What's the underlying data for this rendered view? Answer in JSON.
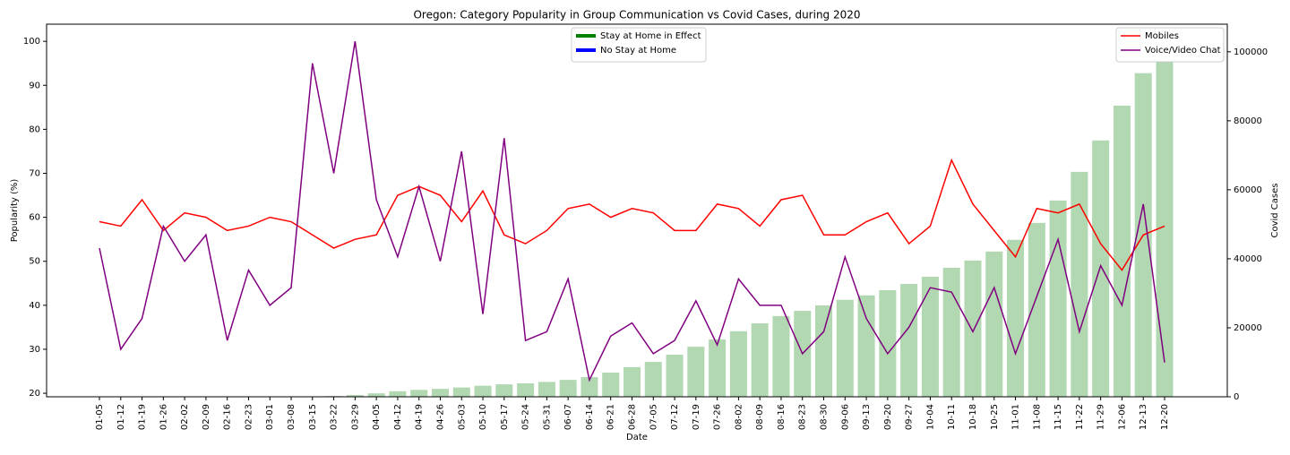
{
  "chart_data": {
    "type": "combo",
    "title": "Oregon: Category Popularity in Group Communication vs Covid Cases, during 2020",
    "xlabel": "Date",
    "ylabel": "Popularity (%)",
    "y2label": "Covid Cases",
    "categories": [
      "01-05",
      "01-12",
      "01-19",
      "01-26",
      "02-02",
      "02-09",
      "02-16",
      "02-23",
      "03-01",
      "03-08",
      "03-15",
      "03-22",
      "03-29",
      "04-05",
      "04-12",
      "04-19",
      "04-26",
      "05-03",
      "05-10",
      "05-17",
      "05-24",
      "05-31",
      "06-07",
      "06-14",
      "06-21",
      "06-28",
      "07-05",
      "07-12",
      "07-19",
      "07-26",
      "08-02",
      "08-09",
      "08-16",
      "08-23",
      "08-30",
      "09-06",
      "09-13",
      "09-20",
      "09-27",
      "10-04",
      "10-11",
      "10-18",
      "10-25",
      "11-01",
      "11-08",
      "11-15",
      "11-22",
      "11-29",
      "12-06",
      "12-13",
      "12-20"
    ],
    "bars": {
      "axis": "y2",
      "color": "#b2d8b2",
      "values": [
        0,
        0,
        0,
        0,
        0,
        0,
        0,
        0,
        0,
        0,
        0,
        200,
        500,
        1000,
        1600,
        2000,
        2300,
        2700,
        3200,
        3600,
        3900,
        4300,
        4900,
        5700,
        7000,
        8600,
        10100,
        12200,
        14500,
        16600,
        19000,
        21300,
        23400,
        24900,
        26500,
        28100,
        29400,
        30900,
        32700,
        34800,
        37400,
        39500,
        42100,
        45500,
        50400,
        56900,
        65200,
        74300,
        84400,
        93800,
        102900
      ]
    },
    "series": [
      {
        "name": "Mobiles",
        "color": "#ff0000",
        "values": [
          59,
          58,
          64,
          57,
          61,
          60,
          57,
          58,
          60,
          59,
          56,
          53,
          55,
          56,
          65,
          67,
          65,
          59,
          66,
          56,
          54,
          57,
          62,
          63,
          60,
          62,
          61,
          57,
          57,
          63,
          62,
          58,
          64,
          65,
          56,
          56,
          59,
          61,
          54,
          58,
          73,
          63,
          57,
          51,
          62,
          61,
          63,
          54,
          48,
          56,
          58
        ]
      },
      {
        "name": "Voice/Video Chat",
        "color": "#800080",
        "values": [
          53,
          30,
          37,
          58,
          50,
          56,
          32,
          48,
          40,
          44,
          95,
          70,
          100,
          64,
          51,
          67,
          50,
          75,
          38,
          78,
          32,
          34,
          46,
          23,
          33,
          36,
          29,
          32,
          41,
          31,
          46,
          40,
          40,
          29,
          34,
          51,
          37,
          29,
          35,
          44,
          43,
          34,
          44,
          29,
          42,
          55,
          34,
          49,
          40,
          63,
          27
        ]
      }
    ],
    "period_legend": [
      {
        "name": "Stay at Home in Effect",
        "color": "#008000"
      },
      {
        "name": "No Stay at Home",
        "color": "#0000ff"
      }
    ],
    "ylim": [
      19.2,
      103.9
    ],
    "yticks": [
      20,
      30,
      40,
      50,
      60,
      70,
      80,
      90,
      100
    ],
    "y2lim": [
      0,
      108000
    ],
    "y2ticks": [
      0,
      20000,
      40000,
      60000,
      80000,
      100000
    ],
    "y2color": "#0000ff",
    "legend": "upper right",
    "period_legend_loc": "upper center"
  }
}
